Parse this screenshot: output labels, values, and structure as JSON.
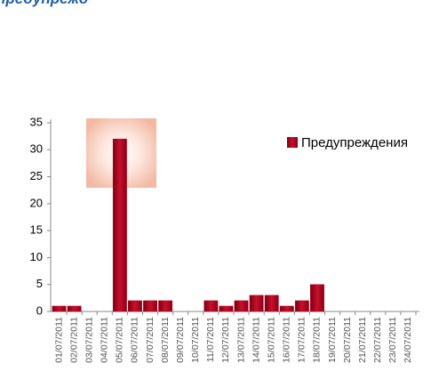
{
  "chart_data": {
    "type": "bar",
    "title": "предупрежд",
    "categories": [
      "01/07/2011",
      "02/07/2011",
      "03/07/2011",
      "04/07/2011",
      "05/07/2011",
      "06/07/2011",
      "07/07/2011",
      "08/07/2011",
      "09/07/2011",
      "10/07/2011",
      "11/07/2011",
      "12/07/2011",
      "13/07/2011",
      "14/07/2011",
      "15/07/2011",
      "16/07/2011",
      "17/07/2011",
      "18/07/2011",
      "19/07/2011",
      "20/07/2011",
      "21/07/2011",
      "22/07/2011",
      "23/07/2011",
      "24/07/2011"
    ],
    "series": [
      {
        "name": "Предупреждения",
        "color": "#b8001f",
        "values": [
          1,
          1,
          0,
          0,
          32,
          2,
          2,
          2,
          0,
          0,
          2,
          1,
          2,
          3,
          3,
          1,
          2,
          5,
          0,
          0,
          0,
          0,
          0,
          0
        ]
      }
    ],
    "ylim": [
      0,
      35
    ],
    "yticks": [
      0,
      5,
      10,
      15,
      20,
      25,
      30,
      35
    ],
    "legend": "top-right"
  }
}
